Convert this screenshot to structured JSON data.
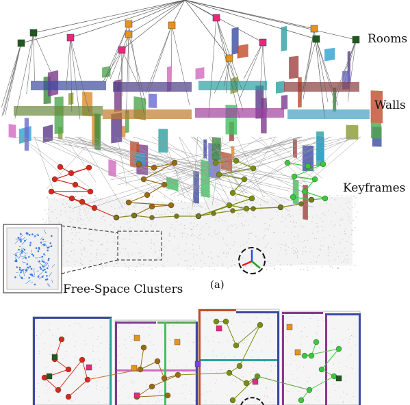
{
  "labels": {
    "rooms": "Rooms",
    "walls": "Walls",
    "keyframes": "Keyframes",
    "free_space": "Free-Space Clusters",
    "subfigure": "(a)"
  },
  "colors": {
    "room_green": "#1e5a1e",
    "room_magenta": "#e8287e",
    "room_orange": "#e8921e",
    "kf_red": "#d42a1c",
    "kf_brown": "#9a6a12",
    "kf_olive": "#7a8c12",
    "kf_green": "#3cc83c",
    "cloud_gray": "#c8c8c8",
    "free_space_blue": "#3a7fe0"
  }
}
